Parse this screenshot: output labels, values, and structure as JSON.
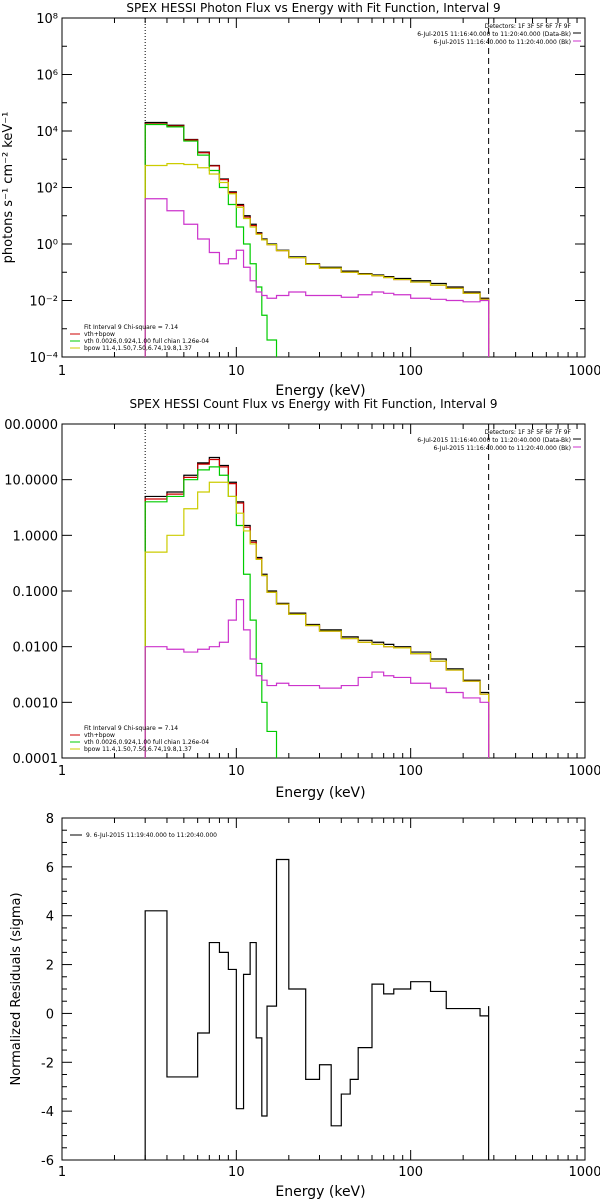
{
  "colors": {
    "data": "#000000",
    "total": "#cc0000",
    "vth": "#00cc00",
    "bpow": "#cccc00",
    "background": "#cc33cc",
    "fit_limit": "#ff8800"
  },
  "chart_data": [
    {
      "type": "line",
      "title": "SPEX HESSI Photon Flux vs Energy with Fit Function, Interval 9",
      "xlabel": "Energy (keV)",
      "ylabel": "photons s⁻¹ cm⁻² keV⁻¹",
      "xscale": "log",
      "yscale": "log",
      "xlim": [
        1,
        1000
      ],
      "ylim": [
        0.0001,
        100000000
      ],
      "xtick_labels": [
        "1",
        "10",
        "100",
        "1000"
      ],
      "ytick_labels": [
        "10⁻⁴",
        "10⁻²",
        "10⁰",
        "10²",
        "10⁴",
        "10⁶",
        "10⁸"
      ],
      "vlines": [
        3,
        280
      ],
      "header": [
        "Detectors: 1F 3F 5F 6F 7F 9F",
        "6-Jul-2015 11:16:40.000 to 11:20:40.000 (Data-Bk)",
        "6-Jul-2015 11:16:40.000 to 11:20:40.000 (Bk)"
      ],
      "fit_info": [
        "Fit Interval 9   Chi-square = 7.14",
        "vth+bpow",
        "vth 0.0026,0.924,1.00  full chian 1.26e-04",
        "bpow 11.4,1.50,7.50,6.74,19.8,1.37"
      ],
      "series": [
        {
          "name": "Data-Bk",
          "color": "#000000",
          "x": [
            3,
            4,
            5,
            6,
            7,
            8,
            9,
            10,
            11,
            12,
            13,
            14,
            15,
            17,
            20,
            25,
            30,
            40,
            50,
            60,
            70,
            80,
            100,
            130,
            160,
            200,
            250,
            280
          ],
          "y": [
            20000,
            16000,
            5000,
            1800,
            600,
            200,
            70,
            25,
            10,
            5,
            2.5,
            1.5,
            1.0,
            0.6,
            0.35,
            0.2,
            0.15,
            0.11,
            0.09,
            0.08,
            0.07,
            0.06,
            0.05,
            0.04,
            0.03,
            0.02,
            0.012,
            0.009
          ]
        },
        {
          "name": "vth+bpow",
          "color": "#cc0000",
          "x": [
            3,
            4,
            5,
            6,
            7,
            8,
            9,
            10,
            11,
            12,
            13,
            14,
            15,
            17,
            20,
            25,
            30,
            40,
            50,
            60,
            70,
            80,
            100,
            130,
            160,
            200,
            250,
            280
          ],
          "y": [
            18000,
            15000,
            4800,
            1700,
            580,
            190,
            65,
            23,
            9,
            4.5,
            2.3,
            1.4,
            0.95,
            0.58,
            0.33,
            0.19,
            0.14,
            0.1,
            0.085,
            0.075,
            0.065,
            0.055,
            0.045,
            0.035,
            0.027,
            0.018,
            0.011,
            0.008
          ]
        },
        {
          "name": "vth",
          "color": "#00cc00",
          "x": [
            3,
            4,
            5,
            6,
            7,
            8,
            9,
            10,
            11,
            12,
            13,
            14,
            15,
            17
          ],
          "y": [
            17000,
            14000,
            4400,
            1400,
            400,
            100,
            25,
            4,
            1,
            0.2,
            0.03,
            0.003,
            0.0004,
            0.0001
          ]
        },
        {
          "name": "bpow",
          "color": "#cccc00",
          "x": [
            3,
            4,
            5,
            6,
            7,
            8,
            9,
            10,
            11,
            12,
            13,
            14,
            15,
            17,
            20,
            25,
            30,
            40,
            50,
            60,
            70,
            80,
            100,
            130,
            160,
            200,
            250,
            280
          ],
          "y": [
            600,
            700,
            650,
            500,
            300,
            150,
            60,
            20,
            8,
            4,
            2.2,
            1.4,
            0.95,
            0.58,
            0.33,
            0.19,
            0.14,
            0.1,
            0.085,
            0.075,
            0.065,
            0.055,
            0.045,
            0.035,
            0.027,
            0.018,
            0.011,
            0.008
          ]
        },
        {
          "name": "Bk",
          "color": "#cc33cc",
          "x": [
            3,
            4,
            5,
            6,
            7,
            8,
            9,
            10,
            11,
            12,
            13,
            14,
            15,
            17,
            20,
            25,
            30,
            40,
            50,
            60,
            70,
            80,
            100,
            130,
            160,
            200,
            250,
            280
          ],
          "y": [
            40,
            15,
            5,
            1.5,
            0.5,
            0.2,
            0.3,
            0.6,
            0.15,
            0.05,
            0.02,
            0.015,
            0.012,
            0.015,
            0.02,
            0.015,
            0.015,
            0.013,
            0.016,
            0.02,
            0.018,
            0.016,
            0.012,
            0.011,
            0.01,
            0.009,
            0.01,
            0.008
          ]
        }
      ]
    },
    {
      "type": "line",
      "title": "SPEX HESSI Count Flux vs Energy with Fit Function, Interval 9",
      "xlabel": "Energy (keV)",
      "ylabel": "",
      "xscale": "log",
      "yscale": "log",
      "xlim": [
        1,
        1000
      ],
      "ylim": [
        0.0001,
        100
      ],
      "xtick_labels": [
        "1",
        "10",
        "100",
        "1000"
      ],
      "ytick_labels": [
        "0.0001",
        "0.0010",
        "0.0100",
        "0.1000",
        "1.0000",
        "10.0000",
        "00.0000"
      ],
      "vlines": [
        3,
        280
      ],
      "header": [
        "Detectors: 1F 3F 5F 6F 7F 9F",
        "6-Jul-2015 11:16:40.000 to 11:20:40.000 (Data-Bk)",
        "6-Jul-2015 11:16:40.000 to 11:20:40.000 (Bk)"
      ],
      "fit_info": [
        "Fit Interval 9   Chi-square = 7.14",
        "vth+bpow",
        "vth 0.0026,0.924,1.00  full chian 1.26e-04",
        "bpow 11.4,1.50,7.50,6.74,19.8,1.37"
      ],
      "series": [
        {
          "name": "Data-Bk",
          "color": "#000000",
          "x": [
            3,
            4,
            5,
            6,
            7,
            8,
            9,
            10,
            11,
            12,
            13,
            14,
            15,
            17,
            20,
            25,
            30,
            40,
            50,
            60,
            70,
            80,
            100,
            130,
            160,
            200,
            250,
            280
          ],
          "y": [
            5,
            6,
            12,
            20,
            25,
            18,
            9,
            4,
            1.5,
            0.8,
            0.4,
            0.2,
            0.1,
            0.06,
            0.04,
            0.025,
            0.02,
            0.015,
            0.013,
            0.012,
            0.011,
            0.01,
            0.008,
            0.006,
            0.004,
            0.0025,
            0.0015,
            0.0012
          ]
        },
        {
          "name": "vth+bpow",
          "color": "#cc0000",
          "x": [
            3,
            4,
            5,
            6,
            7,
            8,
            9,
            10,
            11,
            12,
            13,
            14,
            15,
            17,
            20,
            25,
            30,
            40,
            50,
            60,
            70,
            80,
            100,
            130,
            160,
            200,
            250,
            280
          ],
          "y": [
            4.5,
            5.5,
            11,
            19,
            23,
            17,
            8.5,
            3.8,
            1.4,
            0.75,
            0.38,
            0.19,
            0.095,
            0.058,
            0.038,
            0.024,
            0.019,
            0.014,
            0.012,
            0.011,
            0.01,
            0.0095,
            0.0075,
            0.0055,
            0.0038,
            0.0024,
            0.0014,
            0.0011
          ]
        },
        {
          "name": "vth",
          "color": "#00cc00",
          "x": [
            3,
            4,
            5,
            6,
            7,
            8,
            9,
            10,
            11,
            12,
            13,
            14,
            15,
            17
          ],
          "y": [
            4,
            5,
            10,
            15,
            17,
            12,
            5,
            1.5,
            0.2,
            0.03,
            0.005,
            0.001,
            0.0003,
            0.0001
          ]
        },
        {
          "name": "bpow",
          "color": "#cccc00",
          "x": [
            3,
            4,
            5,
            6,
            7,
            8,
            9,
            10,
            11,
            12,
            13,
            14,
            15,
            17,
            20,
            25,
            30,
            40,
            50,
            60,
            70,
            80,
            100,
            130,
            160,
            200,
            250,
            280
          ],
          "y": [
            0.5,
            1,
            3,
            6,
            9,
            9,
            5,
            2.5,
            1.2,
            0.7,
            0.37,
            0.19,
            0.095,
            0.058,
            0.038,
            0.024,
            0.019,
            0.014,
            0.012,
            0.011,
            0.01,
            0.0095,
            0.0075,
            0.0055,
            0.0038,
            0.0024,
            0.0014,
            0.0011
          ]
        },
        {
          "name": "Bk",
          "color": "#cc33cc",
          "x": [
            3,
            4,
            5,
            6,
            7,
            8,
            9,
            10,
            11,
            12,
            13,
            14,
            15,
            17,
            20,
            25,
            30,
            40,
            50,
            60,
            70,
            80,
            100,
            130,
            160,
            200,
            250,
            280
          ],
          "y": [
            0.01,
            0.009,
            0.008,
            0.009,
            0.01,
            0.012,
            0.03,
            0.07,
            0.02,
            0.006,
            0.003,
            0.0025,
            0.002,
            0.0022,
            0.002,
            0.002,
            0.0018,
            0.002,
            0.0028,
            0.0035,
            0.003,
            0.0028,
            0.0022,
            0.0018,
            0.0015,
            0.0012,
            0.001,
            0.0008
          ]
        }
      ]
    },
    {
      "type": "line",
      "title": "",
      "xlabel": "Energy (keV)",
      "ylabel": "Normalized Residuals (sigma)",
      "xscale": "log",
      "yscale": "linear",
      "xlim": [
        1,
        1000
      ],
      "ylim": [
        -6,
        8
      ],
      "xtick_labels": [
        "1",
        "10",
        "100",
        "1000"
      ],
      "ytick_labels": [
        "-6",
        "-4",
        "-2",
        "0",
        "2",
        "4",
        "6",
        "8"
      ],
      "vlines": [],
      "legend": "9.  6-Jul-2015 11:19:40.000 to 11:20:40.000",
      "series": [
        {
          "name": "Residuals",
          "color": "#000000",
          "x": [
            3,
            4,
            5,
            6,
            7,
            8,
            9,
            10,
            11,
            12,
            13,
            14,
            15,
            17,
            20,
            25,
            30,
            35,
            40,
            45,
            50,
            60,
            70,
            80,
            100,
            130,
            160,
            200,
            250,
            280
          ],
          "y": [
            4.2,
            -2.6,
            -2.6,
            -0.8,
            2.9,
            2.5,
            1.8,
            -3.9,
            1.6,
            2.9,
            -1.0,
            -4.2,
            0.3,
            6.3,
            1.0,
            -2.7,
            -2.1,
            -4.6,
            -3.3,
            -2.7,
            -1.4,
            1.2,
            0.8,
            1.0,
            1.3,
            0.9,
            0.2,
            0.2,
            -0.1,
            0.3
          ]
        }
      ]
    }
  ]
}
